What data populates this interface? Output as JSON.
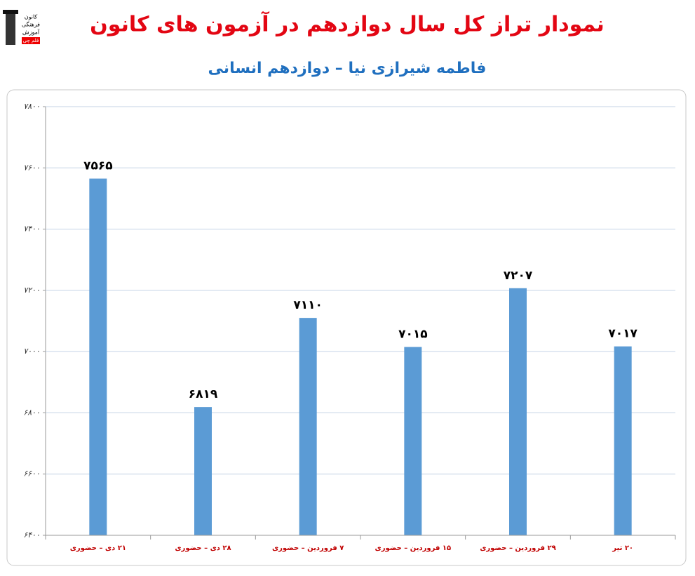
{
  "logo": {
    "lines": [
      "کانون",
      "فرهنگی",
      "آموزش",
      "قلم چی"
    ]
  },
  "chart_data": {
    "type": "bar",
    "title": "نمودار تراز کل سال دوازدهم در آزمون های کانون",
    "subtitle": "فاطمه شیرازی نیا – دوازدهم انسانی",
    "categories": [
      "۲۱ دی – حضوری",
      "۲۸ دی – حضوری",
      "۷ فروردین – حضوری",
      "۱۵ فروردین – حضوری",
      "۲۹ فروردین – حضوری",
      "۲۰ تیر"
    ],
    "values": [
      7565,
      6819,
      7110,
      7015,
      7207,
      7017
    ],
    "value_labels": [
      "۷۵۶۵",
      "۶۸۱۹",
      "۷۱۱۰",
      "۷۰۱۵",
      "۷۲۰۷",
      "۷۰۱۷"
    ],
    "color": "#5b9bd5",
    "ylim": [
      6400,
      7800
    ],
    "yticks": [
      {
        "value": 6400,
        "label": "۶۴۰۰"
      },
      {
        "value": 6600,
        "label": "۶۶۰۰"
      },
      {
        "value": 6800,
        "label": "۶۸۰۰"
      },
      {
        "value": 7000,
        "label": "۷۰۰۰"
      },
      {
        "value": 7200,
        "label": "۷۲۰۰"
      },
      {
        "value": 7400,
        "label": "۷۴۰۰"
      },
      {
        "value": 7600,
        "label": "۷۶۰۰"
      },
      {
        "value": 7800,
        "label": "۷۸۰۰"
      }
    ],
    "grid": true
  }
}
